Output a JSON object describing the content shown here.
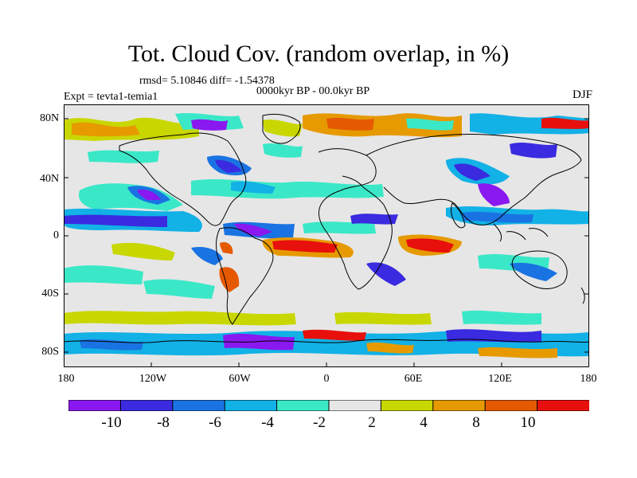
{
  "title": "Tot. Cloud Cov. (random overlap, in %)",
  "stats": {
    "rmsd_line": "rmsd= 5.10846 diff= -1.54378",
    "period": "0000kyr BP - 00.0kyr BP",
    "experiment": "Expt = tevta1-temia1",
    "season": "DJF"
  },
  "axes": {
    "lat_labels": [
      "80N",
      "40N",
      "0",
      "40S",
      "80S"
    ],
    "lon_labels": [
      "180",
      "120W",
      "60W",
      "0",
      "60E",
      "120E",
      "180"
    ]
  },
  "colorbar": {
    "colors": [
      "#8a18f0",
      "#3a2ae0",
      "#1a73e2",
      "#12b1e6",
      "#3ae8c8",
      "#e6e6e6",
      "#c9d700",
      "#e69a00",
      "#e55a00",
      "#e8100c"
    ],
    "labels": [
      "-10",
      "-8",
      "-6",
      "-4",
      "-2",
      "2",
      "4",
      "8",
      "10"
    ]
  },
  "map_layers": {
    "background": "#e6e6e6",
    "coastline_color": "#000000"
  }
}
